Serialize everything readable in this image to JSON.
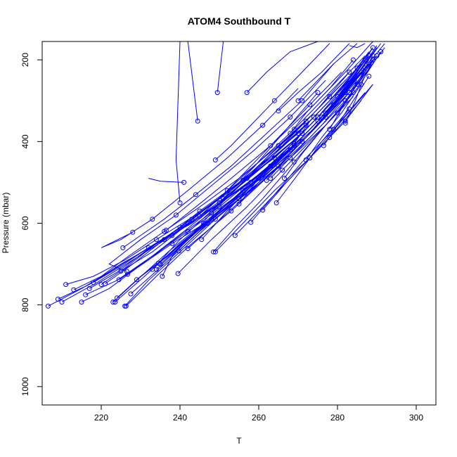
{
  "chart_data": {
    "type": "line",
    "title": "ATOM4 Southbound T",
    "xlabel": "T",
    "ylabel": "Pressure (mbar)",
    "xlim": [
      205,
      305
    ],
    "ylim": [
      1045,
      155
    ],
    "y_reversed": true,
    "x_ticks": [
      220,
      240,
      260,
      280,
      300
    ],
    "y_ticks": [
      200,
      400,
      600,
      800,
      1000
    ],
    "grid": false,
    "legend": "none",
    "series_color": "#0000ff",
    "marker": "open-circle",
    "series": [
      {
        "x": [
          206.5,
          215,
          222,
          232,
          243,
          253,
          263,
          272,
          280,
          287
        ],
        "y": [
          803,
          760,
          720,
          660,
          600,
          530,
          460,
          390,
          300,
          200
        ]
      },
      {
        "x": [
          209,
          217,
          225,
          236,
          247,
          258,
          268,
          276,
          283,
          289
        ],
        "y": [
          786,
          750,
          700,
          640,
          570,
          500,
          420,
          340,
          260,
          170
        ]
      },
      {
        "x": [
          210,
          219,
          228,
          238,
          249,
          259,
          269,
          277,
          284,
          290
        ],
        "y": [
          793,
          745,
          690,
          630,
          560,
          490,
          410,
          330,
          250,
          165
        ]
      },
      {
        "x": [
          211,
          218,
          226,
          234,
          244,
          254,
          264,
          273,
          281,
          288
        ],
        "y": [
          750,
          730,
          690,
          640,
          580,
          510,
          440,
          360,
          280,
          190
        ]
      },
      {
        "x": [
          213,
          220,
          227,
          236,
          245,
          255,
          265,
          274,
          282
        ],
        "y": [
          763,
          730,
          680,
          620,
          560,
          490,
          410,
          330,
          250
        ]
      },
      {
        "x": [
          215,
          222,
          229,
          238,
          248,
          258,
          268,
          277,
          285,
          291
        ],
        "y": [
          793,
          760,
          710,
          650,
          590,
          520,
          440,
          360,
          270,
          180
        ]
      },
      {
        "x": [
          216,
          224,
          233,
          242,
          252,
          262,
          271,
          279,
          286
        ],
        "y": [
          775,
          740,
          680,
          620,
          550,
          480,
          400,
          320,
          230
        ]
      },
      {
        "x": [
          217,
          224,
          231,
          240,
          250,
          260,
          270,
          278,
          286
        ],
        "y": [
          760,
          720,
          670,
          610,
          540,
          460,
          380,
          300,
          210
        ]
      },
      {
        "x": [
          218,
          225,
          232,
          242,
          251,
          261,
          271,
          280,
          287
        ],
        "y": [
          745,
          705,
          660,
          600,
          530,
          460,
          380,
          290,
          200
        ]
      },
      {
        "x": [
          220,
          226,
          234,
          243,
          253,
          263,
          272,
          281,
          288
        ],
        "y": [
          750,
          710,
          650,
          590,
          520,
          440,
          360,
          270,
          180
        ]
      },
      {
        "x": [
          221,
          228,
          236,
          245,
          255,
          265,
          274,
          282,
          289
        ],
        "y": [
          748,
          700,
          640,
          570,
          500,
          420,
          340,
          260,
          170
        ]
      },
      {
        "x": [
          223,
          229,
          237,
          246,
          256,
          266,
          275,
          283,
          290
        ],
        "y": [
          793,
          740,
          670,
          600,
          520,
          440,
          350,
          260,
          170
        ]
      },
      {
        "x": [
          223.5,
          231,
          239,
          248,
          258,
          268,
          277,
          285
        ],
        "y": [
          793,
          730,
          660,
          590,
          510,
          430,
          340,
          250
        ]
      },
      {
        "x": [
          224,
          230,
          238,
          247,
          257,
          267,
          276,
          284,
          291
        ],
        "y": [
          783,
          730,
          670,
          600,
          520,
          430,
          340,
          250,
          160
        ]
      },
      {
        "x": [
          224.5,
          232,
          240,
          250,
          260,
          270,
          279,
          286,
          292
        ],
        "y": [
          738,
          690,
          630,
          560,
          480,
          400,
          310,
          230,
          160
        ]
      },
      {
        "x": [
          225,
          233,
          241,
          251,
          261,
          271,
          280,
          288
        ],
        "y": [
          717,
          670,
          610,
          540,
          460,
          380,
          290,
          200
        ]
      },
      {
        "x": [
          225.5,
          230,
          236,
          244,
          253,
          262,
          271,
          279
        ],
        "y": [
          660,
          630,
          590,
          530,
          460,
          380,
          300,
          210
        ]
      },
      {
        "x": [
          226,
          232,
          240,
          249,
          259,
          268,
          277,
          285
        ],
        "y": [
          803,
          740,
          670,
          590,
          510,
          420,
          330,
          240
        ]
      },
      {
        "x": [
          226.3,
          234,
          243,
          253,
          263,
          273,
          282,
          289
        ],
        "y": [
          803,
          730,
          650,
          570,
          480,
          390,
          300,
          210
        ]
      },
      {
        "x": [
          226.5,
          222,
          230,
          239,
          249,
          259,
          268,
          277
        ],
        "y": [
          718,
          700,
          640,
          580,
          500,
          420,
          340,
          250
        ]
      },
      {
        "x": [
          226.7,
          233,
          241,
          250,
          260,
          270
        ],
        "y": [
          725,
          680,
          620,
          550,
          470,
          390
        ]
      },
      {
        "x": [
          227.5,
          236,
          245,
          255,
          265,
          274,
          283,
          290
        ],
        "y": [
          773,
          700,
          620,
          540,
          460,
          370,
          280,
          190
        ]
      },
      {
        "x": [
          228,
          220,
          225,
          233,
          242,
          252,
          261,
          270
        ],
        "y": [
          622,
          660,
          640,
          590,
          520,
          440,
          360,
          270
        ]
      },
      {
        "x": [
          229,
          237,
          246,
          256,
          266,
          276,
          285,
          292
        ],
        "y": [
          738,
          680,
          600,
          520,
          440,
          350,
          260,
          170
        ]
      },
      {
        "x": [
          233,
          240,
          249,
          258,
          268,
          277,
          286
        ],
        "y": [
          713,
          650,
          580,
          500,
          410,
          320,
          230
        ]
      },
      {
        "x": [
          234,
          241,
          250,
          260,
          270,
          279,
          287
        ],
        "y": [
          713,
          650,
          570,
          490,
          400,
          310,
          220
        ]
      },
      {
        "x": [
          234.5,
          240,
          248,
          257,
          266,
          275,
          283
        ],
        "y": [
          698,
          640,
          570,
          490,
          410,
          320,
          230
        ]
      },
      {
        "x": [
          235,
          242,
          251,
          261,
          271,
          280,
          288
        ],
        "y": [
          700,
          640,
          560,
          480,
          390,
          300,
          210
        ]
      },
      {
        "x": [
          235.5,
          238,
          244,
          251,
          259,
          267,
          275
        ],
        "y": [
          730,
          680,
          620,
          540,
          460,
          370,
          280
        ]
      },
      {
        "x": [
          236.5,
          244,
          253,
          263,
          273,
          282,
          289
        ],
        "y": [
          617,
          560,
          490,
          410,
          320,
          230,
          150
        ]
      },
      {
        "x": [
          239.5,
          248,
          257,
          266,
          275,
          284
        ],
        "y": [
          723,
          640,
          560,
          470,
          380,
          290
        ]
      },
      {
        "x": [
          239.7,
          246,
          254,
          263,
          272,
          281,
          289
        ],
        "y": [
          668,
          610,
          540,
          460,
          380,
          290,
          200
        ]
      },
      {
        "x": [
          240,
          239,
          240
        ],
        "y": [
          550,
          445,
          155
        ]
      },
      {
        "x": [
          241,
          235,
          232
        ],
        "y": [
          500,
          497,
          490
        ]
      },
      {
        "x": [
          242,
          248,
          256,
          265,
          274,
          282,
          290
        ],
        "y": [
          662,
          610,
          540,
          460,
          370,
          280,
          190
        ]
      },
      {
        "x": [
          244.5,
          242,
          246
        ],
        "y": [
          350,
          155,
          155
        ]
      },
      {
        "x": [
          245,
          252,
          260,
          269,
          278,
          287
        ],
        "y": [
          583,
          520,
          450,
          370,
          280,
          190
        ]
      },
      {
        "x": [
          245.5,
          252,
          260,
          269,
          278
        ],
        "y": [
          640,
          570,
          490,
          410,
          320
        ]
      },
      {
        "x": [
          248,
          255,
          263,
          272,
          281
        ],
        "y": [
          575,
          510,
          430,
          350,
          260
        ]
      },
      {
        "x": [
          248.5,
          254,
          261,
          269,
          277,
          285
        ],
        "y": [
          670,
          610,
          540,
          450,
          360,
          270
        ]
      },
      {
        "x": [
          249,
          256,
          264,
          273,
          281,
          289
        ],
        "y": [
          670,
          600,
          520,
          440,
          350,
          260
        ]
      },
      {
        "x": [
          249.5,
          251
        ],
        "y": [
          280,
          155
        ]
      },
      {
        "x": [
          249,
          253,
          258,
          264,
          271,
          278
        ],
        "y": [
          445,
          410,
          360,
          300,
          230,
          160
        ]
      },
      {
        "x": [
          252,
          258,
          265,
          273,
          281
        ],
        "y": [
          520,
          460,
          390,
          310,
          230
        ]
      },
      {
        "x": [
          254,
          261,
          269,
          278,
          286
        ],
        "y": [
          630,
          560,
          480,
          390,
          300
        ]
      },
      {
        "x": [
          255,
          260,
          267,
          275,
          283
        ],
        "y": [
          553,
          490,
          420,
          340,
          250
        ]
      },
      {
        "x": [
          256,
          262,
          270,
          278,
          286
        ],
        "y": [
          495,
          440,
          370,
          290,
          210
        ]
      },
      {
        "x": [
          257,
          262,
          268,
          275
        ],
        "y": [
          280,
          230,
          180,
          155
        ]
      },
      {
        "x": [
          258,
          264,
          271,
          279,
          287
        ],
        "y": [
          598,
          530,
          450,
          370,
          280
        ]
      },
      {
        "x": [
          261,
          267,
          274,
          282,
          289
        ],
        "y": [
          568,
          500,
          430,
          350,
          260
        ]
      },
      {
        "x": [
          262,
          268,
          275,
          282,
          289
        ],
        "y": [
          495,
          430,
          360,
          280,
          200
        ]
      },
      {
        "x": [
          263,
          269,
          276,
          283,
          290
        ],
        "y": [
          490,
          430,
          360,
          280,
          190
        ]
      },
      {
        "x": [
          264.5,
          270,
          276,
          283
        ],
        "y": [
          550,
          480,
          400,
          320
        ]
      },
      {
        "x": [
          265,
          270,
          276,
          283
        ],
        "y": [
          325,
          280,
          230,
          160
        ]
      },
      {
        "x": [
          266.5,
          271,
          277,
          284
        ],
        "y": [
          490,
          430,
          360,
          280
        ]
      },
      {
        "x": [
          268,
          272,
          278,
          284
        ],
        "y": [
          380,
          330,
          270,
          200
        ]
      },
      {
        "x": [
          269,
          273,
          279,
          285
        ],
        "y": [
          405,
          350,
          290,
          220
        ]
      },
      {
        "x": [
          270,
          274,
          279,
          285
        ],
        "y": [
          300,
          260,
          210,
          160
        ]
      },
      {
        "x": [
          272,
          276,
          281,
          286
        ],
        "y": [
          445,
          390,
          330,
          260
        ]
      },
      {
        "x": [
          276.5,
          280,
          284,
          288
        ],
        "y": [
          410,
          360,
          300,
          240
        ]
      },
      {
        "x": [
          278,
          281,
          285,
          289
        ],
        "y": [
          370,
          320,
          260,
          200
        ]
      },
      {
        "x": [
          280,
          283,
          286,
          289
        ],
        "y": [
          330,
          290,
          240,
          190
        ]
      },
      {
        "x": [
          282,
          284.5,
          286.5,
          289
        ],
        "y": [
          355,
          300,
          250,
          200
        ]
      },
      {
        "x": [
          283,
          285,
          287
        ],
        "y": [
          165,
          170,
          160
        ]
      }
    ]
  }
}
